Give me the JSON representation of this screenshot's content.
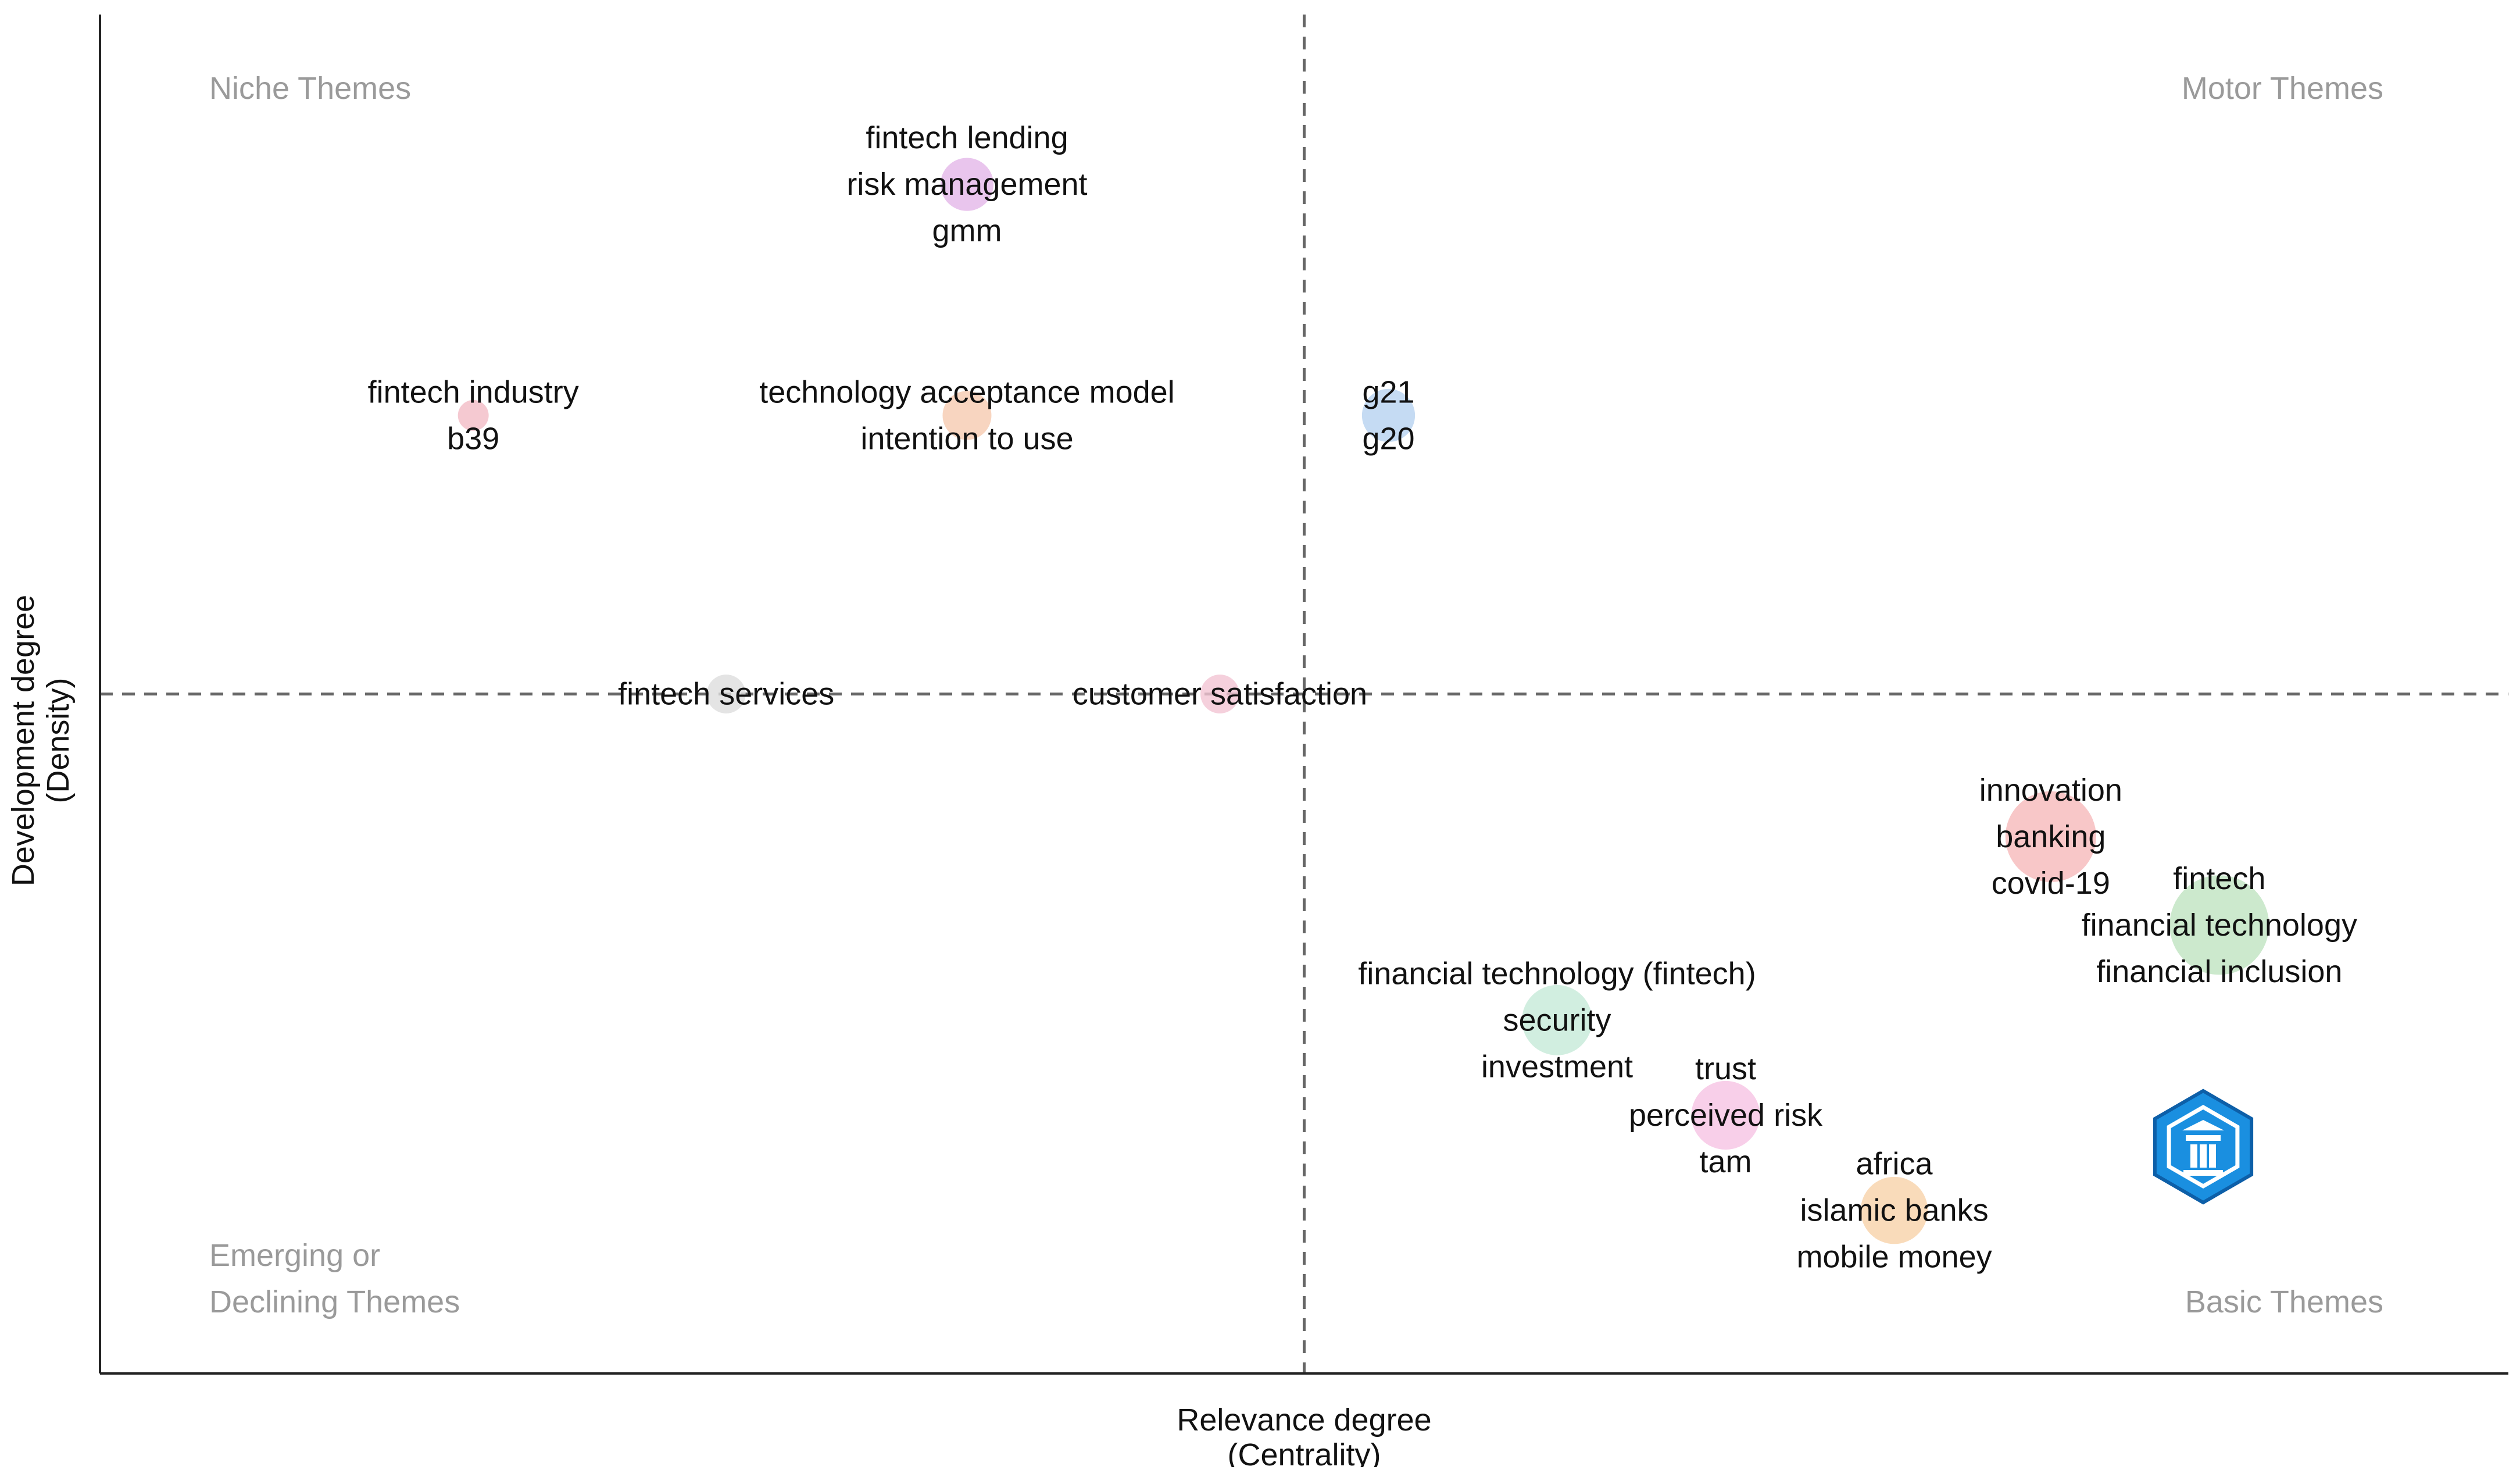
{
  "chart_data": {
    "type": "scatter",
    "subtype": "bubble thematic map",
    "title": "",
    "xlabel": "Relevance degree",
    "xlabel_sub": "(Centrality)",
    "ylabel": "Development degree",
    "ylabel_sub": "(Density)",
    "xlim": [
      0,
      10
    ],
    "ylim": [
      0,
      10
    ],
    "x_divider": 5,
    "y_divider": 5,
    "grid": false,
    "quadrants": {
      "top_left": [
        "Niche Themes"
      ],
      "top_right": [
        "Motor Themes"
      ],
      "bottom_left": [
        "Emerging or",
        "Declining Themes"
      ],
      "bottom_right": [
        "Basic Themes"
      ]
    },
    "clusters": [
      {
        "id": "fintech-lending",
        "x": 3.6,
        "y": 8.75,
        "size": 1.2,
        "color": "#e3b6e8",
        "labels": [
          "fintech lending",
          "risk management",
          "gmm"
        ]
      },
      {
        "id": "technology-acceptance",
        "x": 3.6,
        "y": 7.05,
        "size": 1.0,
        "color": "#f6cbb0",
        "labels": [
          "technology acceptance model",
          "intention to use"
        ]
      },
      {
        "id": "g21",
        "x": 5.35,
        "y": 7.05,
        "size": 1.2,
        "color": "#b7d2f0",
        "labels": [
          "g21",
          "g20"
        ]
      },
      {
        "id": "fintech-industry",
        "x": 1.55,
        "y": 7.05,
        "size": 0.35,
        "color": "#f2bcc6",
        "labels": [
          "fintech industry",
          "b39"
        ]
      },
      {
        "id": "fintech-services",
        "x": 2.6,
        "y": 5.0,
        "size": 0.6,
        "color": "#dddddd",
        "labels": [
          "fintech services"
        ]
      },
      {
        "id": "customer-satisfaction",
        "x": 4.65,
        "y": 5.0,
        "size": 0.6,
        "color": "#f3c4d3",
        "labels": [
          "customer satisfaction"
        ]
      },
      {
        "id": "innovation",
        "x": 8.1,
        "y": 3.95,
        "size": 3.8,
        "color": "#f6b9ba",
        "labels": [
          "innovation",
          "banking",
          "covid-19"
        ]
      },
      {
        "id": "fintech",
        "x": 8.8,
        "y": 3.3,
        "size": 4.6,
        "color": "#bfe3c1",
        "labels": [
          "fintech",
          "financial technology",
          "financial inclusion"
        ]
      },
      {
        "id": "security",
        "x": 6.05,
        "y": 2.6,
        "size": 2.2,
        "color": "#c5ead8",
        "labels": [
          "financial technology (fintech)",
          "security",
          "investment"
        ]
      },
      {
        "id": "trust",
        "x": 6.75,
        "y": 1.9,
        "size": 2.1,
        "color": "#f6c3e4",
        "labels": [
          "trust",
          "perceived risk",
          "tam"
        ]
      },
      {
        "id": "africa",
        "x": 7.45,
        "y": 1.2,
        "size": 2.0,
        "color": "#f8d2a9",
        "labels": [
          "africa",
          "islamic banks",
          "mobile money"
        ]
      }
    ],
    "watermark": "shield-logo"
  }
}
